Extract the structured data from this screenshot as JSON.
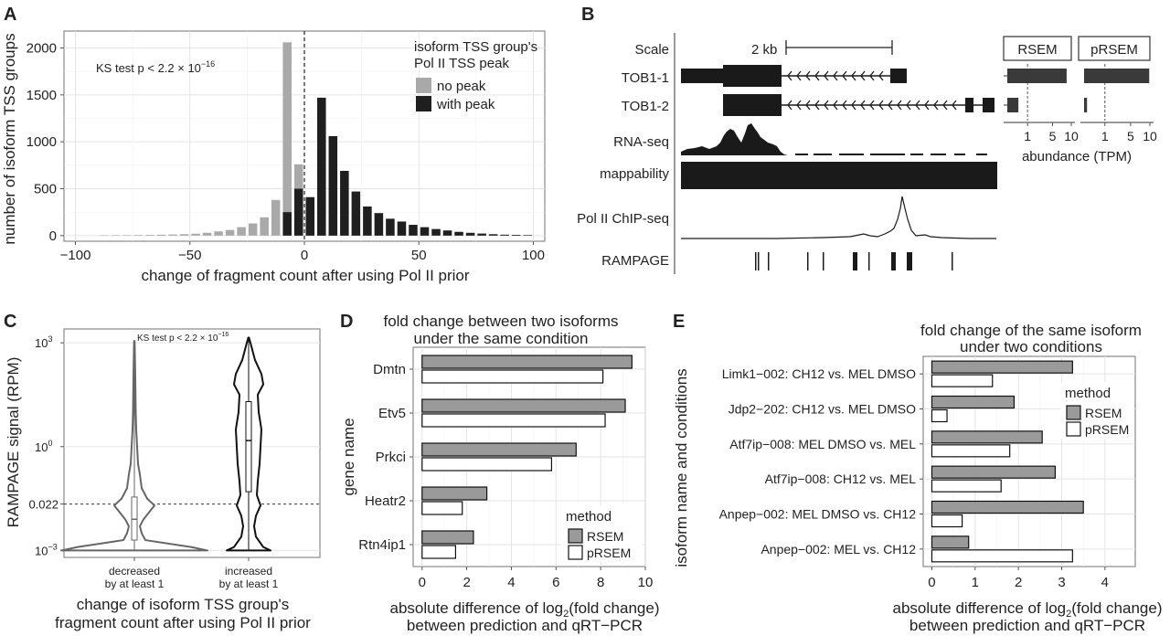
{
  "panels": {
    "a": {
      "letter": "A",
      "ylabel": "number of isoform TSS groups",
      "xlabel": "change of fragment count after using Pol II prior",
      "annotation": "KS test p < 2.2 × 10",
      "annotation_sup": "−16",
      "legend_title": "isoform TSS group's\nPol II TSS peak",
      "legend_items": [
        "no peak",
        "with peak"
      ]
    },
    "b": {
      "letter": "B",
      "track_labels": [
        "Scale",
        "TOB1-1",
        "TOB1-2",
        "RNA-seq",
        "mappability",
        "Pol II ChIP-seq",
        "RAMPAGE"
      ],
      "scale_label": "2 kb",
      "facet_labels": [
        "RSEM",
        "pRSEM"
      ],
      "xlabel": "abundance (TPM)"
    },
    "c": {
      "letter": "C",
      "ylabel": "RAMPAGE signal (RPM)",
      "xlabel": "change of isoform TSS group's\nfragment count after using Pol II prior",
      "annotation": "KS test p < 2.2 × 10",
      "annotation_sup": "−16",
      "categories": [
        "decreased\nby at least 1",
        "increased\nby at least 1"
      ]
    },
    "d": {
      "letter": "D",
      "title": "fold change between two isoforms\nunder the same condition",
      "ylabel": "gene name",
      "xlabel": "absolute difference of log₂(fold change)\nbetween prediction and qRT−PCR",
      "legend_title": "method",
      "legend_items": [
        "RSEM",
        "pRSEM"
      ]
    },
    "e": {
      "letter": "E",
      "title": "fold change of the same isoform\nunder two conditions",
      "ylabel": "isoform name and conditions",
      "xlabel": "absolute difference of log₂(fold change)\nbetween prediction and qRT−PCR",
      "legend_title": "method",
      "legend_items": [
        "RSEM",
        "pRSEM"
      ]
    }
  },
  "colors": {
    "rsem": "#9a9a9a",
    "prsem": "#ffffff",
    "no_peak": "#a9a9a9",
    "with_peak": "#1f1f1f",
    "dark": "#1a1a1a"
  },
  "chart_data": [
    {
      "id": "A",
      "type": "bar",
      "title": "",
      "xlabel": "change of fragment count after using Pol II prior",
      "ylabel": "number of isoform TSS groups",
      "xlim": [
        -105,
        105
      ],
      "ylim": [
        -60,
        2180
      ],
      "xticks": [
        -100,
        -50,
        0,
        50,
        100
      ],
      "yticks": [
        0,
        500,
        1000,
        1500,
        2000
      ],
      "bin_width": 5,
      "grid": true,
      "legend": "top-right",
      "reference_line_x": 0,
      "series": [
        {
          "name": "no peak",
          "x": [
            -87.5,
            -82.5,
            -77.5,
            -72.5,
            -67.5,
            -62.5,
            -57.5,
            -52.5,
            -47.5,
            -42.5,
            -37.5,
            -32.5,
            -27.5,
            -22.5,
            -17.5,
            -12.5,
            -7.5,
            -2.5,
            2.5,
            7.5,
            12.5,
            17.5,
            22.5,
            27.5,
            32.5,
            37.5,
            42.5
          ],
          "values": [
            4,
            5,
            5,
            6,
            8,
            10,
            12,
            15,
            20,
            30,
            45,
            60,
            90,
            130,
            195,
            380,
            2060,
            760,
            190,
            70,
            30,
            15,
            8,
            5,
            3,
            2,
            2
          ]
        },
        {
          "name": "with peak",
          "x": [
            -7.5,
            -2.5,
            2.5,
            7.5,
            12.5,
            17.5,
            22.5,
            27.5,
            32.5,
            37.5,
            42.5,
            47.5,
            52.5,
            57.5,
            62.5,
            67.5,
            72.5,
            77.5,
            82.5,
            87.5,
            92.5,
            97.5
          ],
          "values": [
            250,
            500,
            410,
            1470,
            1060,
            690,
            470,
            310,
            240,
            180,
            150,
            115,
            90,
            70,
            55,
            40,
            30,
            22,
            15,
            10,
            8,
            6
          ]
        }
      ]
    },
    {
      "id": "B-abundance",
      "type": "bar",
      "title": "",
      "xlabel": "abundance (TPM)",
      "ylabel": "",
      "x_scale": "sqrt",
      "xlim": [
        0,
        10
      ],
      "xticks": [
        1,
        5,
        10
      ],
      "reference_line_x": 1,
      "categories": [
        "TOB1-1",
        "TOB1-2"
      ],
      "facets": [
        {
          "name": "RSEM",
          "values": [
            8.6,
            0.3
          ]
        },
        {
          "name": "pRSEM",
          "values": [
            9.8,
            0.02
          ]
        }
      ]
    },
    {
      "id": "C",
      "type": "violin",
      "title": "",
      "xlabel": "change of isoform TSS group's fragment count after using Pol II prior",
      "ylabel": "RAMPAGE signal (RPM)",
      "y_scale": "log10",
      "ylim": [
        0.0006,
        3000
      ],
      "yticks": [
        "10^-3",
        "10^0",
        "10^3"
      ],
      "extra_ytick": "0.022",
      "reference_line_y": 0.022,
      "categories": [
        "decreased by at least 1",
        "increased by at least 1"
      ],
      "series": [
        {
          "name": "decreased by at least 1",
          "min": 0.001,
          "q1": 0.002,
          "median": 0.008,
          "q3": 0.035,
          "max": 1200
        },
        {
          "name": "increased by at least 1",
          "min": 0.001,
          "q1": 0.05,
          "median": 1.5,
          "q3": 20,
          "max": 1500
        }
      ]
    },
    {
      "id": "D",
      "type": "bar",
      "title": "fold change between two isoforms under the same condition",
      "xlabel": "absolute difference of log2(fold change) between prediction and qRT−PCR",
      "ylabel": "gene name",
      "orientation": "horizontal",
      "xlim": [
        -0.4,
        10
      ],
      "xticks": [
        0,
        2,
        4,
        6,
        8,
        10
      ],
      "legend": "bottom-right",
      "grid": true,
      "categories": [
        "Dmtn",
        "Etv5",
        "Prkci",
        "Heatr2",
        "Rtn4ip1"
      ],
      "series": [
        {
          "name": "RSEM",
          "values": [
            9.4,
            9.1,
            6.9,
            2.9,
            2.3
          ]
        },
        {
          "name": "pRSEM",
          "values": [
            8.1,
            8.2,
            5.8,
            1.8,
            1.5
          ]
        }
      ]
    },
    {
      "id": "E",
      "type": "bar",
      "title": "fold change of the same isoform under two conditions",
      "xlabel": "absolute difference of log2(fold change) between prediction and qRT−PCR",
      "ylabel": "isoform name and conditions",
      "orientation": "horizontal",
      "xlim": [
        -0.2,
        4.7
      ],
      "xticks": [
        0,
        1,
        2,
        3,
        4
      ],
      "legend": "top-right",
      "grid": true,
      "categories": [
        "Limk1−002: CH12 vs. MEL DMSO",
        "Jdp2−202: CH12 vs. MEL DMSO",
        "Atf7ip−008: MEL DMSO vs. MEL",
        "Atf7ip−008: CH12 vs. MEL",
        "Anpep−002: MEL DMSO vs. CH12",
        "Anpep−002: MEL vs. CH12"
      ],
      "series": [
        {
          "name": "RSEM",
          "values": [
            3.25,
            1.9,
            2.55,
            2.85,
            3.5,
            0.85
          ]
        },
        {
          "name": "pRSEM",
          "values": [
            1.4,
            0.35,
            1.8,
            1.6,
            0.7,
            3.25
          ]
        }
      ]
    }
  ]
}
